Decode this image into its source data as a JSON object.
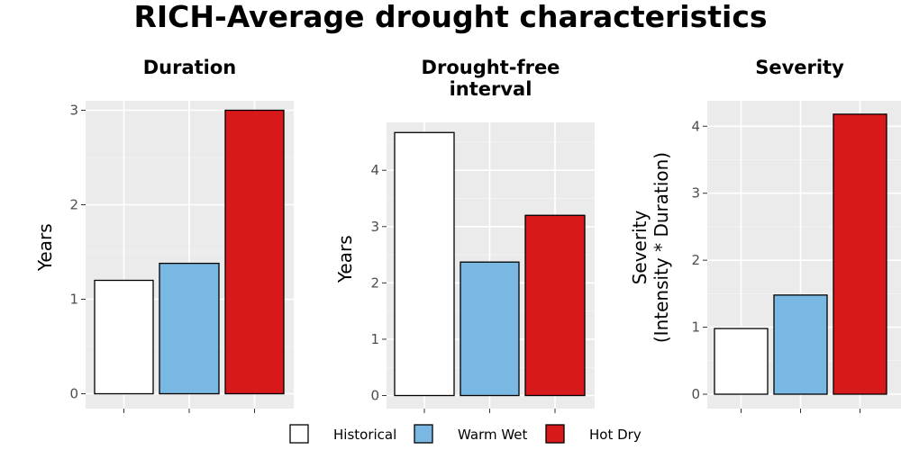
{
  "title": "RICH-Average drought characteristics",
  "colors": {
    "Historical": "#ffffff",
    "Warm Wet": "#79b8e2",
    "Hot Dry": "#d7191c"
  },
  "chart_data": [
    {
      "type": "bar",
      "title": "Duration",
      "title_lines": [
        "Duration"
      ],
      "ylabel": "Years",
      "ylabel_lines": [
        "Years"
      ],
      "ylim": [
        0,
        3.1
      ],
      "yticks": [
        0,
        1,
        2,
        3
      ],
      "categories": [
        "Historical",
        "Warm Wet",
        "Hot Dry"
      ],
      "values": [
        1.2,
        1.38,
        3.0
      ]
    },
    {
      "type": "bar",
      "title": "Drought-free interval",
      "title_lines": [
        "Drought-free",
        "interval"
      ],
      "ylabel": "Years",
      "ylabel_lines": [
        "Years"
      ],
      "ylim": [
        0,
        4.85
      ],
      "yticks": [
        0,
        1,
        2,
        3,
        4
      ],
      "categories": [
        "Historical",
        "Warm Wet",
        "Hot Dry"
      ],
      "values": [
        4.67,
        2.37,
        3.2
      ]
    },
    {
      "type": "bar",
      "title": "Severity",
      "title_lines": [
        "Severity"
      ],
      "ylabel": "Severity (Intensity * Duration)",
      "ylabel_lines": [
        "Severity",
        "(Intensity * Duration)"
      ],
      "ylim": [
        0,
        4.38
      ],
      "yticks": [
        0,
        1,
        2,
        3,
        4
      ],
      "categories": [
        "Historical",
        "Warm Wet",
        "Hot Dry"
      ],
      "values": [
        0.98,
        1.48,
        4.18
      ]
    }
  ],
  "legend": {
    "position": "bottom",
    "items": [
      "Historical",
      "Warm Wet",
      "Hot Dry"
    ]
  }
}
